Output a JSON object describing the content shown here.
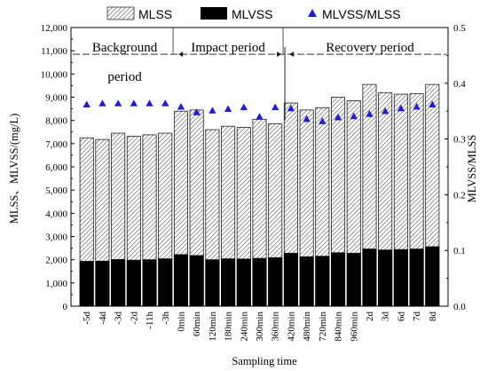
{
  "chart_data": {
    "type": "bar",
    "subtype": "overlaid-bar-with-scatter-secondary-axis",
    "categories": [
      "-5d",
      "-4d",
      "-3d",
      "-2d",
      "-11h",
      "-3h",
      "0min",
      "60min",
      "120min",
      "180min",
      "240min",
      "300min",
      "360min",
      "420min",
      "480min",
      "720min",
      "840min",
      "960min",
      "2d",
      "3d",
      "6d",
      "7d",
      "8d"
    ],
    "series": [
      {
        "name": "MLSS",
        "axis": "left",
        "kind": "bar",
        "pattern": "hatch",
        "values": [
          7250,
          7180,
          7450,
          7320,
          7380,
          7450,
          8400,
          8450,
          7600,
          7750,
          7700,
          8050,
          7850,
          8750,
          8450,
          8550,
          9000,
          8850,
          9550,
          9200,
          9130,
          9150,
          9550
        ]
      },
      {
        "name": "MLVSS",
        "axis": "left",
        "kind": "bar",
        "color": "#000000",
        "values": [
          1930,
          1940,
          2010,
          1980,
          2000,
          2040,
          2220,
          2180,
          2000,
          2040,
          2030,
          2060,
          2090,
          2280,
          2130,
          2150,
          2300,
          2280,
          2460,
          2420,
          2440,
          2460,
          2560
        ]
      },
      {
        "name": "MLVSS/MLSS",
        "axis": "right",
        "kind": "scatter",
        "marker": "triangle",
        "color": "#1f1fd1",
        "values": [
          0.362,
          0.364,
          0.364,
          0.364,
          0.364,
          0.364,
          0.358,
          0.348,
          0.351,
          0.354,
          0.357,
          0.34,
          0.357,
          0.355,
          0.336,
          0.332,
          0.339,
          0.341,
          0.345,
          0.35,
          0.355,
          0.358,
          0.362
        ]
      }
    ],
    "xlabel": "Sampling time",
    "ylabel": "MLSS、MLVSS/(mg/L)",
    "y2label": "MLVSS/MLSS",
    "ylim": [
      0,
      12000
    ],
    "y2lim": [
      0,
      0.5
    ],
    "y_ticks": [
      0,
      1000,
      2000,
      3000,
      4000,
      5000,
      6000,
      7000,
      8000,
      9000,
      10000,
      11000,
      12000
    ],
    "y_tick_labels": [
      "0",
      "1,000",
      "2,000",
      "3,000",
      "4,000",
      "5,000",
      "6,000",
      "7,000",
      "8,000",
      "9,000",
      "10,000",
      "11,000",
      "12,000"
    ],
    "y2_ticks": [
      0,
      0.1,
      0.2,
      0.3,
      0.4,
      0.5
    ],
    "y2_tick_labels": [
      "0.0",
      "0.1",
      "0.2",
      "0.3",
      "0.4",
      "0.5"
    ],
    "legend": {
      "placement": "top",
      "entries": [
        {
          "label": "MLSS",
          "symbol": "hatch-box"
        },
        {
          "label": "MLVSS",
          "symbol": "black-box"
        },
        {
          "label": "MLVSS/MLSS",
          "symbol": "blue-triangle"
        }
      ]
    },
    "periods": [
      {
        "label_line1": "Background",
        "label_line2": "period",
        "start_index": 0,
        "end_index": 6
      },
      {
        "label_line1": "Impact period",
        "label_line2": "",
        "start_index": 6,
        "end_index": 13
      },
      {
        "label_line1": "Recovery period",
        "label_line2": "",
        "start_index": 13,
        "end_index": 22
      }
    ],
    "grid": false
  }
}
